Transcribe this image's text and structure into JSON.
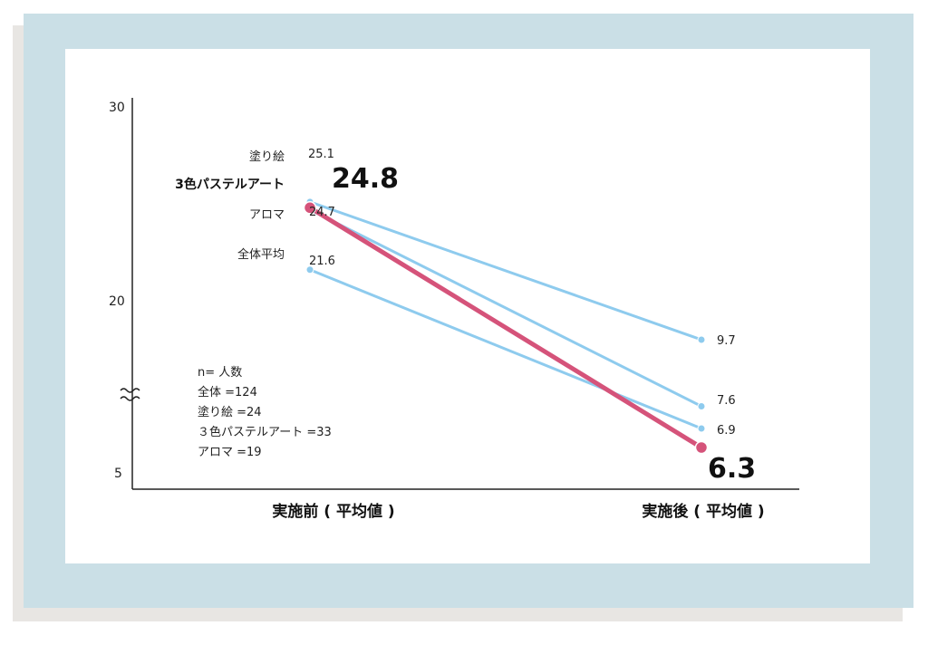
{
  "chart_data": {
    "type": "line",
    "categories": [
      "実施前（平均値）",
      "実施後（平均値）"
    ],
    "category_labels": [
      "実施前 ( 平均値 )",
      "実施後 ( 平均値 )"
    ],
    "yticks": [
      "30",
      "20",
      "5"
    ],
    "axis_break": true,
    "series": [
      {
        "name": "塗り絵",
        "values": [
          25.1,
          9.7
        ],
        "before_label": "25.1",
        "after_label": "9.7",
        "color": "#8ecbee",
        "highlight": false
      },
      {
        "name": "3色パステルアート",
        "values": [
          24.8,
          6.3
        ],
        "before_label": "24.8",
        "after_label": "6.3",
        "color": "#d5537a",
        "highlight": true
      },
      {
        "name": "アロマ",
        "values": [
          24.7,
          7.6
        ],
        "before_label": "24.7",
        "after_label": "7.6",
        "color": "#8ecbee",
        "highlight": false
      },
      {
        "name": "全体平均",
        "values": [
          21.6,
          6.9
        ],
        "before_label": "21.6",
        "after_label": "6.9",
        "color": "#8ecbee",
        "highlight": false
      }
    ],
    "notes": [
      "n= 人数",
      "全体 =124",
      "塗り絵 =24",
      "３色パステルアート =33",
      "アロマ =19"
    ]
  }
}
